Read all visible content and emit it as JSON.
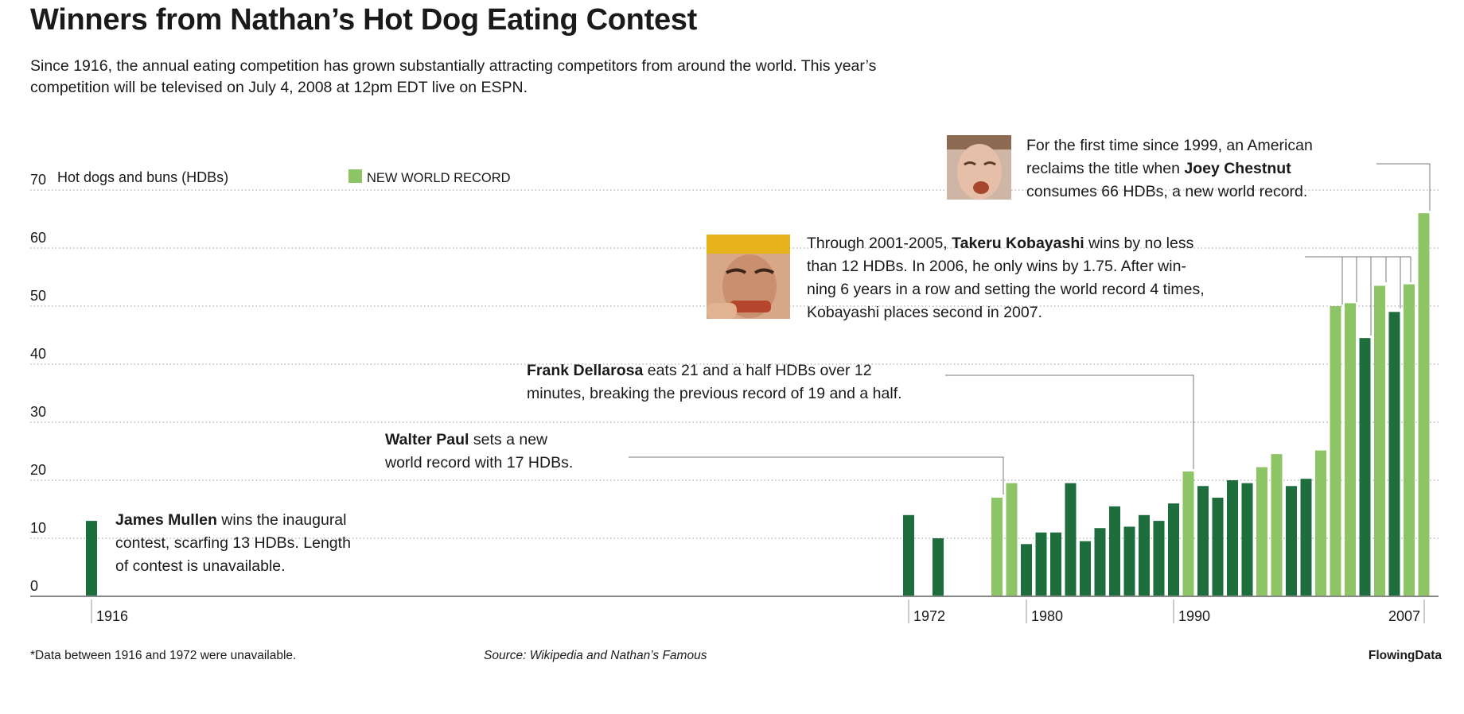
{
  "title": "Winners from Nathan’s Hot Dog Eating Contest",
  "subtitle": "Since 1916, the annual eating competition has grown substantially attracting competitors from around the world. This year’s competition will be televised on July 4, 2008 at 12pm EDT live on ESPN.",
  "footnote": "*Data between 1916 and 1972 were unavailable.",
  "source": "Source: Wikipedia and Nathan’s Famous",
  "credit": "FlowingData",
  "colors": {
    "record": "#8dc465",
    "regular": "#1d6e3c",
    "grid": "#9a9a9a",
    "leader": "#777777"
  },
  "chart_data": {
    "type": "bar",
    "ylabel": "Hot dogs and buns (HDBs)",
    "ylim": [
      0,
      70
    ],
    "yticks": [
      0,
      10,
      20,
      30,
      40,
      50,
      60,
      70
    ],
    "grid": true,
    "legend": {
      "label": "NEW WORLD RECORD",
      "placement": "top-left"
    },
    "x_tick_labels": [
      "1916",
      "1972",
      "1980",
      "1990",
      "2007"
    ],
    "bars": [
      {
        "year": 1916,
        "value": 13,
        "record": false
      },
      {
        "year": 1972,
        "value": 14,
        "record": false
      },
      {
        "year": 1974,
        "value": 10,
        "record": false
      },
      {
        "year": 1978,
        "value": 17,
        "record": true
      },
      {
        "year": 1979,
        "value": 19.5,
        "record": true
      },
      {
        "year": 1980,
        "value": 9,
        "record": false
      },
      {
        "year": 1981,
        "value": 11,
        "record": false
      },
      {
        "year": 1982,
        "value": 11,
        "record": false
      },
      {
        "year": 1983,
        "value": 19.5,
        "record": false
      },
      {
        "year": 1984,
        "value": 9.5,
        "record": false
      },
      {
        "year": 1985,
        "value": 11.75,
        "record": false
      },
      {
        "year": 1986,
        "value": 15.5,
        "record": false
      },
      {
        "year": 1987,
        "value": 12,
        "record": false
      },
      {
        "year": 1988,
        "value": 14,
        "record": false
      },
      {
        "year": 1989,
        "value": 13,
        "record": false
      },
      {
        "year": 1990,
        "value": 16,
        "record": false
      },
      {
        "year": 1991,
        "value": 21.5,
        "record": true
      },
      {
        "year": 1992,
        "value": 19,
        "record": false
      },
      {
        "year": 1993,
        "value": 17,
        "record": false
      },
      {
        "year": 1994,
        "value": 20,
        "record": false
      },
      {
        "year": 1995,
        "value": 19.5,
        "record": false
      },
      {
        "year": 1996,
        "value": 22.25,
        "record": true
      },
      {
        "year": 1997,
        "value": 24.5,
        "record": true
      },
      {
        "year": 1998,
        "value": 19,
        "record": false
      },
      {
        "year": 1999,
        "value": 20.25,
        "record": false
      },
      {
        "year": 2000,
        "value": 25.125,
        "record": true
      },
      {
        "year": 2001,
        "value": 50,
        "record": true
      },
      {
        "year": 2002,
        "value": 50.5,
        "record": true
      },
      {
        "year": 2003,
        "value": 44.5,
        "record": false
      },
      {
        "year": 2004,
        "value": 53.5,
        "record": true
      },
      {
        "year": 2005,
        "value": 49,
        "record": false
      },
      {
        "year": 2006,
        "value": 53.75,
        "record": true
      },
      {
        "year": 2007,
        "value": 66,
        "record": true
      }
    ],
    "annotations": [
      {
        "bold": "James Mullen",
        "lines": [
          "James Mullen wins the inaugural",
          "contest, scarfing 13 HDBs. Length",
          "of contest is unavailable."
        ]
      },
      {
        "bold": "Walter Paul",
        "lines": [
          "Walter Paul sets a new",
          "world record with 17 HDBs."
        ]
      },
      {
        "bold": "Frank Dellarosa",
        "lines": [
          "Frank Dellarosa eats 21 and a half HDBs over 12",
          "minutes, breaking the previous record of 19 and a half."
        ]
      },
      {
        "bold": "Takeru Kobayashi",
        "lines": [
          "Through 2001-2005, Takeru Kobayashi wins by no less",
          "than 12 HDBs. In 2006, he only wins by 1.75. After win-",
          "ning 6 years in a row and setting the world record 4 times,",
          "Kobayashi places second in 2007."
        ]
      },
      {
        "bold": "Joey Chestnut",
        "lines": [
          "For the first time since 1999, an American",
          "reclaims the title when Joey Chestnut",
          "consumes 66 HDBs, a new world record."
        ]
      }
    ]
  }
}
